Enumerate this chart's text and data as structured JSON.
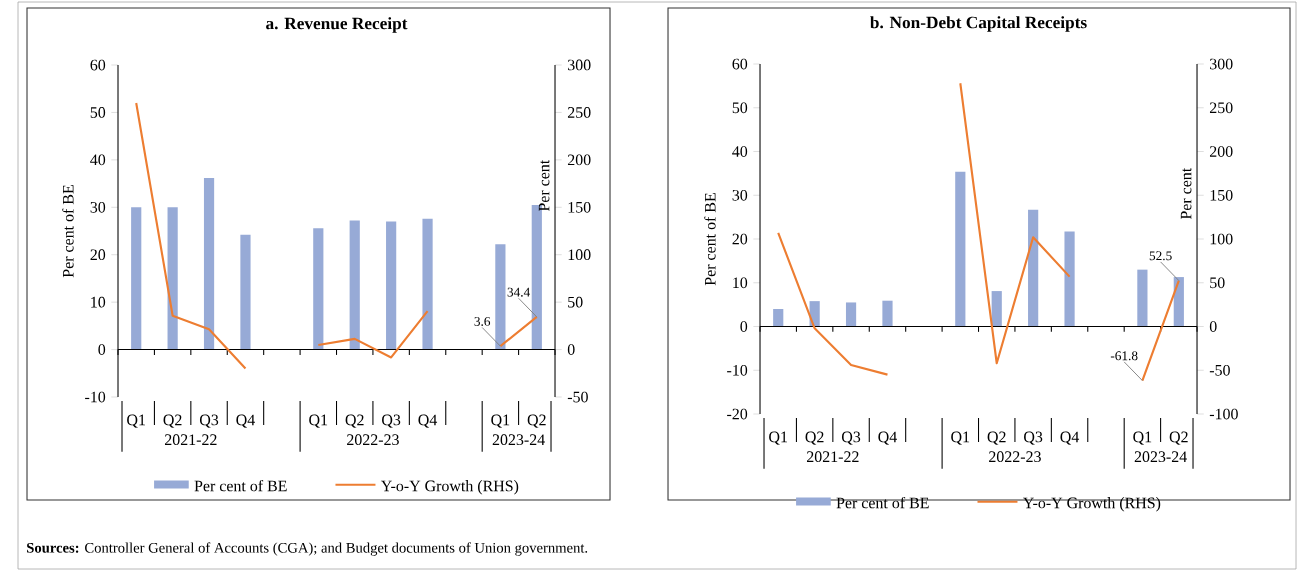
{
  "chart_data": [
    {
      "type": "bar",
      "title": "a. Revenue Receipt",
      "ylabel": "Per cent of BE",
      "y2label": "Per cent",
      "categories": [
        "Q1",
        "Q2",
        "Q3",
        "Q4",
        null,
        "Q1",
        "Q2",
        "Q3",
        "Q4",
        null,
        "Q1",
        "Q2"
      ],
      "series": [
        {
          "name": "Per cent of BE",
          "color": "#97aad6",
          "values": [
            30.0,
            30.0,
            36.2,
            24.2,
            null,
            25.6,
            27.2,
            27.0,
            27.6,
            null,
            22.2,
            30.5
          ]
        },
        {
          "name": "Y-o-Y Growth (RHS)",
          "type": "line",
          "axis": "y2",
          "color": "#ed7d31",
          "values": [
            260,
            35.7,
            21.4,
            -20,
            null,
            4.9,
            11.3,
            -8.3,
            40.6,
            null,
            3.6,
            34.4
          ],
          "value_labels": [
            null,
            null,
            null,
            null,
            null,
            null,
            null,
            null,
            null,
            null,
            "3.6",
            "34.4"
          ]
        }
      ],
      "ylim": [
        -10,
        60
      ],
      "yticks": [
        -10,
        0,
        10,
        20,
        30,
        40,
        50,
        60
      ],
      "y2lim": [
        -50,
        300
      ],
      "y2ticks": [
        -50,
        0,
        50,
        100,
        150,
        200,
        250,
        300
      ],
      "legend": "bottom",
      "annotations": [
        "2021-22",
        "2022-23",
        "2023-24",
        "**Sources:** Controller General of Accounts (CGA); and Budget documents of Union government."
      ]
    },
    {
      "type": "bar",
      "title": "b. Non-Debt Capital Receipts",
      "ylabel": "Per cent of BE",
      "y2label": "Per cent",
      "categories": [
        "Q1",
        "Q2",
        "Q3",
        "Q4",
        null,
        "Q1",
        "Q2",
        "Q3",
        "Q4",
        null,
        "Q1",
        "Q2"
      ],
      "series": [
        {
          "name": "Per cent of BE",
          "color": "#97aad6",
          "values": [
            4.0,
            5.8,
            5.5,
            5.9,
            null,
            35.4,
            8.1,
            26.7,
            21.7,
            null,
            13.0,
            11.3
          ]
        },
        {
          "name": "Y-o-Y Growth (RHS)",
          "type": "line",
          "axis": "y2",
          "color": "#ed7d31",
          "values": [
            107,
            -2,
            -44,
            -55,
            null,
            278,
            -42,
            102,
            57,
            null,
            -61.8,
            52.5
          ],
          "value_labels": [
            null,
            null,
            null,
            null,
            null,
            null,
            null,
            null,
            null,
            null,
            "-61.8",
            "52.5"
          ]
        }
      ],
      "ylim": [
        -20,
        60
      ],
      "yticks": [
        -20,
        -10,
        0,
        10,
        20,
        30,
        40,
        50,
        60
      ],
      "y2lim": [
        -100,
        300
      ],
      "y2ticks": [
        -100,
        -50,
        0,
        50,
        100,
        150,
        200,
        250,
        300
      ],
      "legend": "bottom",
      "annotations": [
        "2021-22",
        "2022-23",
        "2023-24"
      ]
    }
  ]
}
